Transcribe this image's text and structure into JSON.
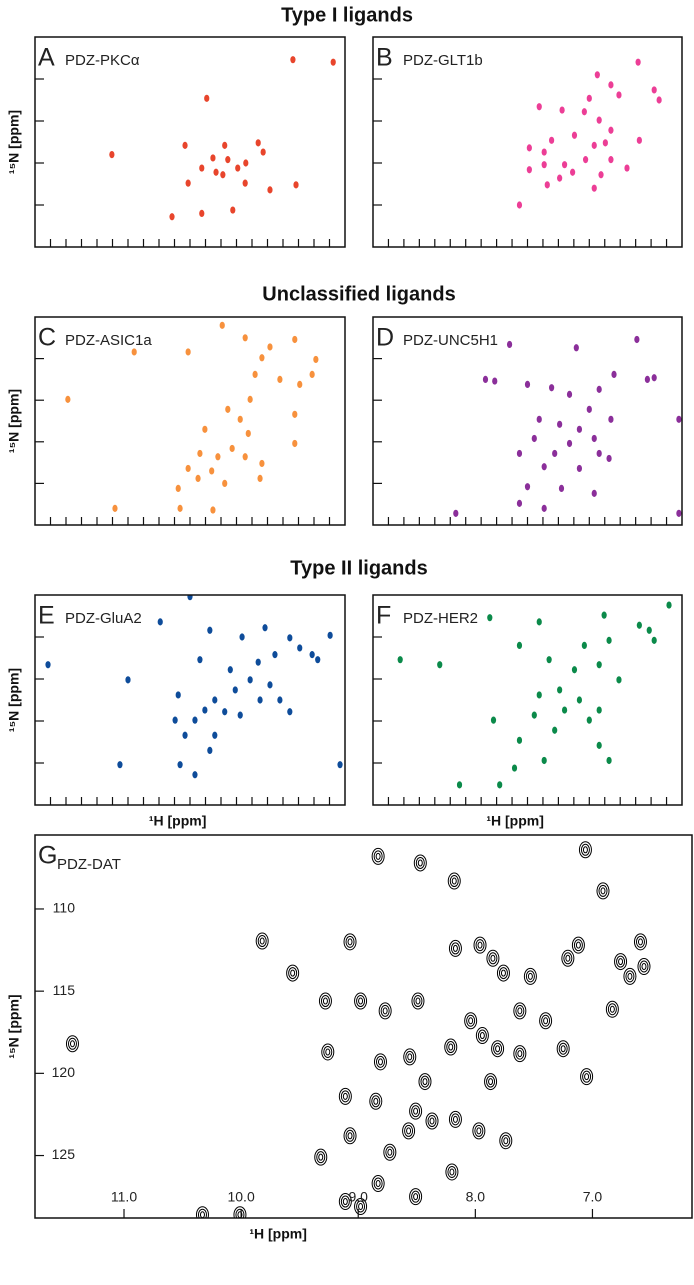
{
  "headings": [
    "Type I ligands",
    "Unclassified ligands",
    "Type II ligands"
  ],
  "chart_data": [
    {
      "type": "scatter",
      "label": "A",
      "title": "PDZ-PKCα",
      "ylabel": "¹⁵N [ppm]",
      "color": "#e8452c",
      "tick_labels": false,
      "xlim": [
        11,
        6
      ],
      "ylim": [
        130,
        105
      ],
      "xticks": [
        10.75,
        10.5,
        10.25,
        10,
        9.75,
        9.5,
        9.25,
        9,
        8.75,
        8.5,
        8.25,
        8,
        7.75,
        7.5,
        7.25,
        7,
        6.75,
        6.5,
        6.25
      ],
      "yticks": [
        110,
        115,
        120,
        125
      ],
      "x": [
        6.84,
        6.19,
        8.23,
        9.76,
        8.58,
        7.94,
        7.4,
        7.32,
        8.13,
        7.89,
        7.6,
        8.31,
        8.08,
        7.97,
        7.73,
        8.53,
        7.61,
        7.21,
        6.79,
        8.31,
        8.79,
        7.81
      ],
      "y": [
        107.7,
        108.0,
        112.3,
        119.0,
        117.9,
        117.9,
        117.6,
        118.7,
        119.4,
        119.6,
        120.0,
        120.6,
        121.1,
        121.4,
        120.6,
        122.4,
        122.4,
        123.2,
        122.6,
        126.0,
        126.4,
        125.6
      ]
    },
    {
      "type": "scatter",
      "label": "B",
      "title": "PDZ-GLT1b",
      "color": "#ec3e96",
      "tick_labels": false,
      "xlim": [
        11,
        6
      ],
      "ylim": [
        130,
        105
      ],
      "xticks": [
        10.75,
        10.5,
        10.25,
        10,
        9.75,
        9.5,
        9.25,
        9,
        8.75,
        8.5,
        8.25,
        8,
        7.75,
        7.5,
        7.25,
        7,
        6.75,
        6.5,
        6.25
      ],
      "yticks": [
        110,
        115,
        120,
        125
      ],
      "x": [
        6.71,
        7.37,
        7.15,
        7.02,
        6.45,
        6.37,
        7.5,
        8.31,
        7.94,
        7.58,
        7.34,
        7.15,
        7.74,
        8.11,
        7.42,
        7.24,
        8.47,
        8.23,
        7.9,
        7.77,
        7.56,
        7.15,
        8.23,
        8.47,
        8.63,
        8.18,
        7.98,
        6.89,
        6.69,
        7.31,
        7.42
      ],
      "y": [
        108.0,
        109.5,
        110.7,
        111.9,
        111.3,
        112.5,
        112.3,
        113.3,
        113.7,
        113.9,
        114.9,
        116.1,
        116.7,
        117.3,
        117.9,
        117.6,
        118.2,
        118.7,
        120.2,
        121.1,
        119.6,
        119.6,
        120.2,
        120.8,
        125.0,
        122.6,
        121.8,
        120.6,
        117.3,
        121.4,
        123.0
      ]
    },
    {
      "type": "scatter",
      "label": "C",
      "title": "PDZ-ASIC1a",
      "ylabel": "¹⁵N [ppm]",
      "color": "#f7913d",
      "tick_labels": false,
      "xlim": [
        11,
        6
      ],
      "ylim": [
        130,
        105
      ],
      "xticks": [
        10.75,
        10.5,
        10.25,
        10,
        9.75,
        9.5,
        9.25,
        9,
        8.75,
        8.5,
        8.25,
        8,
        7.75,
        7.5,
        7.25,
        7,
        6.75,
        6.5,
        6.25
      ],
      "yticks": [
        110,
        115,
        120,
        125
      ],
      "x": [
        7.98,
        7.61,
        8.53,
        9.4,
        7.21,
        6.81,
        6.47,
        6.53,
        6.73,
        7.05,
        7.34,
        7.45,
        10.47,
        7.53,
        7.89,
        7.69,
        8.26,
        7.56,
        7.82,
        8.05,
        7.61,
        8.34,
        8.53,
        8.15,
        7.34,
        8.69,
        8.37,
        7.94,
        7.37,
        8.66,
        8.13,
        9.71,
        6.81,
        6.81
      ],
      "y": [
        106.0,
        107.5,
        109.2,
        109.2,
        108.6,
        107.7,
        110.1,
        111.9,
        113.1,
        112.5,
        109.9,
        111.9,
        114.9,
        114.9,
        116.1,
        117.3,
        118.5,
        119.0,
        120.8,
        121.8,
        121.8,
        121.4,
        123.2,
        123.5,
        122.6,
        125.6,
        124.4,
        125.0,
        124.4,
        128.0,
        128.2,
        128.0,
        116.7,
        120.2
      ]
    },
    {
      "type": "scatter",
      "label": "D",
      "title": "PDZ-UNC5H1",
      "color": "#8b2f9a",
      "tick_labels": false,
      "xlim": [
        11,
        6
      ],
      "ylim": [
        130,
        105
      ],
      "xticks": [
        10.75,
        10.5,
        10.25,
        10,
        9.75,
        9.5,
        9.25,
        9,
        8.75,
        8.5,
        8.25,
        8,
        7.75,
        7.5,
        7.25,
        7,
        6.75,
        6.5,
        6.25
      ],
      "yticks": [
        110,
        115,
        120,
        125
      ],
      "x": [
        8.79,
        7.71,
        6.73,
        6.56,
        6.45,
        7.1,
        7.34,
        9.18,
        9.03,
        8.5,
        8.11,
        7.82,
        7.5,
        7.15,
        8.31,
        7.98,
        7.66,
        7.42,
        7.34,
        7.82,
        8.06,
        8.39,
        8.63,
        8.23,
        7.66,
        7.18,
        8.5,
        7.95,
        7.42,
        8.63,
        8.23,
        9.66,
        6.05,
        6.05
      ],
      "y": [
        108.3,
        108.7,
        107.7,
        112.5,
        112.3,
        111.9,
        113.7,
        112.5,
        112.7,
        113.1,
        113.5,
        114.3,
        116.1,
        117.3,
        117.3,
        117.9,
        118.5,
        119.6,
        121.4,
        120.2,
        121.4,
        119.6,
        121.4,
        123.0,
        123.2,
        122.0,
        125.4,
        125.6,
        126.2,
        127.4,
        128.0,
        128.6,
        128.6,
        117.3
      ]
    },
    {
      "type": "scatter",
      "label": "E",
      "title": "PDZ-GluA2",
      "ylabel": "¹⁵N [ppm]",
      "xlabel": "¹H [ppm]",
      "color": "#0e4c9a",
      "tick_labels": false,
      "xlim": [
        11,
        6
      ],
      "ylim": [
        130,
        105
      ],
      "xticks": [
        10.75,
        10.5,
        10.25,
        10,
        9.75,
        9.5,
        9.25,
        9,
        8.75,
        8.5,
        8.25,
        8,
        7.75,
        7.5,
        7.25,
        7,
        6.75,
        6.5,
        6.25
      ],
      "yticks": [
        110,
        115,
        120,
        125
      ],
      "x": [
        8.5,
        8.98,
        8.18,
        7.29,
        7.66,
        6.89,
        6.73,
        6.24,
        6.53,
        6.44,
        7.13,
        7.4,
        10.79,
        9.5,
        8.34,
        7.85,
        7.53,
        7.21,
        7.05,
        7.37,
        7.77,
        8.1,
        8.26,
        7.94,
        8.42,
        7.69,
        8.74,
        8.58,
        8.1,
        8.18,
        8.66,
        8.42,
        9.63,
        6.08,
        8.69,
        6.89
      ],
      "y": [
        105.2,
        108.2,
        109.2,
        108.9,
        110.0,
        110.1,
        111.3,
        109.8,
        112.1,
        112.7,
        112.1,
        113.0,
        113.3,
        115.1,
        112.7,
        113.9,
        115.1,
        115.7,
        117.5,
        117.5,
        116.3,
        117.5,
        118.7,
        118.9,
        119.9,
        119.3,
        119.9,
        121.7,
        121.7,
        123.5,
        125.2,
        126.4,
        125.2,
        125.2,
        116.9,
        118.9
      ]
    },
    {
      "type": "scatter",
      "label": "F",
      "title": "PDZ-HER2",
      "xlabel": "¹H [ppm]",
      "color": "#0b8a4a",
      "tick_labels": false,
      "xlim": [
        11,
        6
      ],
      "ylim": [
        130,
        105
      ],
      "xticks": [
        10.75,
        10.5,
        10.25,
        10,
        9.75,
        9.5,
        9.25,
        9,
        8.75,
        8.5,
        8.25,
        8,
        7.75,
        7.5,
        7.25,
        7,
        6.75,
        6.5,
        6.25
      ],
      "yticks": [
        110,
        115,
        120,
        125
      ],
      "x": [
        9.11,
        8.31,
        6.21,
        7.26,
        6.69,
        6.45,
        6.53,
        7.18,
        7.58,
        8.63,
        10.56,
        9.92,
        8.15,
        7.74,
        7.34,
        7.02,
        7.98,
        8.31,
        7.66,
        7.34,
        7.9,
        8.39,
        7.5,
        8.06,
        8.63,
        7.34,
        8.23,
        8.71,
        8.95,
        9.6,
        7.18,
        9.05
      ],
      "y": [
        107.7,
        108.2,
        106.2,
        107.4,
        108.6,
        110.4,
        109.2,
        110.4,
        111.0,
        111.0,
        112.7,
        113.3,
        112.7,
        113.9,
        113.3,
        115.1,
        116.3,
        116.9,
        117.5,
        118.7,
        118.7,
        119.3,
        119.9,
        121.1,
        122.3,
        122.9,
        124.7,
        125.6,
        127.6,
        127.6,
        124.7,
        119.9
      ]
    },
    {
      "type": "contour",
      "label": "G",
      "title": "PDZ-DAT",
      "ylabel": "¹⁵N [ppm]",
      "xlabel": "¹H [ppm]",
      "color": "#000000",
      "tick_labels": true,
      "xlim": [
        11.76,
        6.15
      ],
      "ylim": [
        128.8,
        105.5
      ],
      "xticks": [
        {
          "value": 11,
          "label": "11.0"
        },
        {
          "value": 10,
          "label": "10.0"
        },
        {
          "value": 9,
          "label": "9.0"
        },
        {
          "value": 8,
          "label": "8.0"
        },
        {
          "value": 7,
          "label": "7.0"
        }
      ],
      "yticks": [
        110,
        115,
        120,
        125
      ],
      "x": [
        11.44,
        9.82,
        9.56,
        9.07,
        8.83,
        8.47,
        8.18,
        8.17,
        7.96,
        7.85,
        7.53,
        7.76,
        7.21,
        7.12,
        7.06,
        6.91,
        6.59,
        6.76,
        6.68,
        6.56,
        6.83,
        7.25,
        7.05,
        9.28,
        8.98,
        8.77,
        8.49,
        8.04,
        7.94,
        7.81,
        7.62,
        8.21,
        8.56,
        8.81,
        9.26,
        9.11,
        8.85,
        8.51,
        8.37,
        8.17,
        7.97,
        7.74,
        9.07,
        8.73,
        8.83,
        9.32,
        8.98,
        8.2,
        8.57,
        8.51,
        10.01,
        10.33,
        9.11,
        8.43,
        7.87,
        7.62,
        7.4
      ],
      "y": [
        118.2,
        111.95,
        113.9,
        112.0,
        106.8,
        107.2,
        108.3,
        112.4,
        112.2,
        113.0,
        114.1,
        113.9,
        113.0,
        112.2,
        106.4,
        108.9,
        112.0,
        113.2,
        114.1,
        113.5,
        116.1,
        118.5,
        120.2,
        115.6,
        115.6,
        116.2,
        115.6,
        116.8,
        117.7,
        118.5,
        118.8,
        118.4,
        119.0,
        119.3,
        118.7,
        121.4,
        121.7,
        122.3,
        122.9,
        122.8,
        123.5,
        124.1,
        123.8,
        124.8,
        126.7,
        125.1,
        128.1,
        126.0,
        123.5,
        127.5,
        128.6,
        128.6,
        127.8,
        120.5,
        120.5,
        116.2,
        116.8
      ]
    }
  ]
}
